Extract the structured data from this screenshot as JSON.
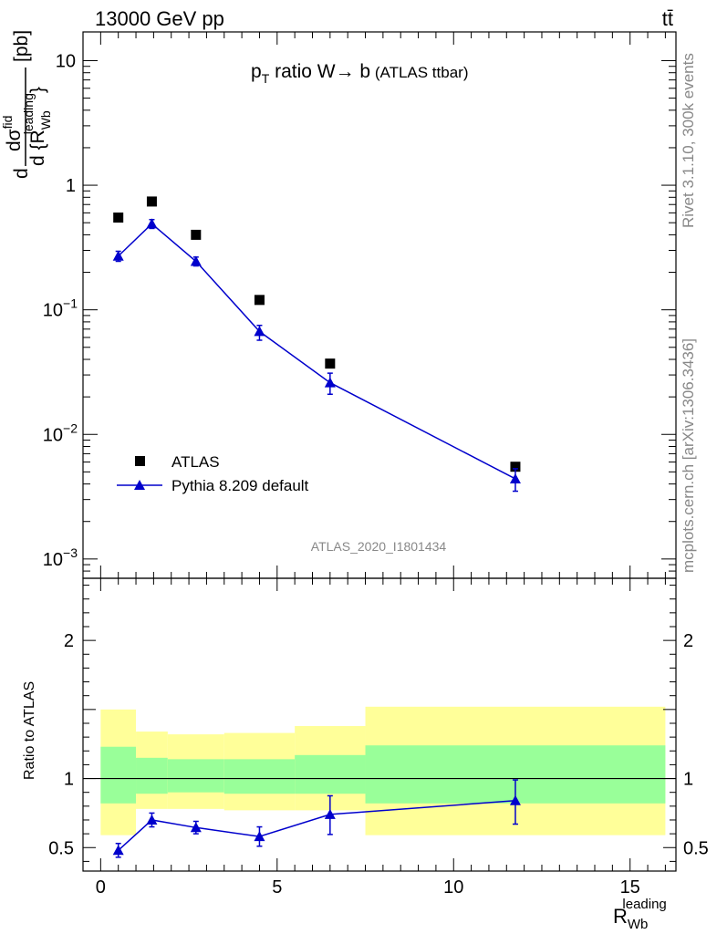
{
  "header": {
    "energy_label": "13000 GeV pp",
    "process_label": "tt̄"
  },
  "side_labels": {
    "rivet_info": "Rivet 3.1.10,  300k events",
    "site_info": "mcplots.cern.ch [arXiv:1306.3436]"
  },
  "chart_data": [
    {
      "type": "scatter",
      "title_p": "p",
      "title_sub": "T",
      "title_main": " ratio W",
      "title_arrow": "→",
      "title_b": " b",
      "title_small": " (ATLAS ttbar)",
      "ylabel_d": "d",
      "ylabel_sigma": "dσ",
      "ylabel_sigma_sup": "fid",
      "ylabel_den": "d {R",
      "ylabel_den_sub": "Wb",
      "ylabel_den_sup": "leading",
      "ylabel_den_close": "}",
      "ylabel_unit": "[pb]",
      "analysis_label": "ATLAS_2020_I1801434",
      "xlim": [
        -0.5,
        16.3
      ],
      "ylim": [
        0.0007,
        17
      ],
      "yscale": "log",
      "y_ticks": [
        {
          "value": 10,
          "base": "10",
          "exp": ""
        },
        {
          "value": 1,
          "base": "1",
          "exp": ""
        },
        {
          "value": 0.1,
          "base": "10",
          "exp": "−1"
        },
        {
          "value": 0.01,
          "base": "10",
          "exp": "−2"
        },
        {
          "value": 0.001,
          "base": "10",
          "exp": "−3"
        }
      ],
      "legend_position": "lower-left",
      "series": [
        {
          "name": "ATLAS",
          "marker": "square",
          "color": "#000000",
          "x": [
            0.5,
            1.45,
            2.7,
            4.5,
            6.5,
            11.75
          ],
          "y": [
            0.55,
            0.74,
            0.4,
            0.12,
            0.037,
            0.0055
          ]
        },
        {
          "name": "Pythia 8.209 default",
          "marker": "triangle",
          "color": "#0000cc",
          "x": [
            0.5,
            1.45,
            2.7,
            4.5,
            6.5,
            11.75
          ],
          "y": [
            0.27,
            0.49,
            0.245,
            0.067,
            0.026,
            0.0044
          ],
          "y_err_low": [
            0.025,
            0.04,
            0.02,
            0.01,
            0.005,
            0.0009
          ],
          "y_err_high": [
            0.025,
            0.04,
            0.02,
            0.008,
            0.005,
            0.0009
          ]
        }
      ]
    },
    {
      "type": "line",
      "ylabel": "Ratio to ATLAS",
      "xlabel": "R",
      "xlabel_sub": "Wb",
      "xlabel_sup": "leading",
      "xlim": [
        -0.5,
        16.3
      ],
      "ylim": [
        0.33,
        2.45
      ],
      "x_ticks": [
        0,
        5,
        10,
        15
      ],
      "y_ticks": [
        0.5,
        1,
        2
      ],
      "reference_line": 1,
      "bands": [
        {
          "x0": 0,
          "x1": 1,
          "inner": [
            0.82,
            1.23
          ],
          "outer": [
            0.59,
            1.5
          ]
        },
        {
          "x0": 1,
          "x1": 1.9,
          "inner": [
            0.89,
            1.15
          ],
          "outer": [
            0.78,
            1.34
          ]
        },
        {
          "x0": 1.9,
          "x1": 3.5,
          "inner": [
            0.9,
            1.14
          ],
          "outer": [
            0.78,
            1.32
          ]
        },
        {
          "x0": 3.5,
          "x1": 5.5,
          "inner": [
            0.89,
            1.14
          ],
          "outer": [
            0.77,
            1.33
          ]
        },
        {
          "x0": 5.5,
          "x1": 7.5,
          "inner": [
            0.89,
            1.17
          ],
          "outer": [
            0.77,
            1.38
          ]
        },
        {
          "x0": 7.5,
          "x1": 16,
          "inner": [
            0.82,
            1.24
          ],
          "outer": [
            0.59,
            1.52
          ]
        }
      ],
      "band_colors": {
        "inner": "#99ff99",
        "outer": "#ffff99"
      },
      "series": [
        {
          "name": "Pythia 8.209 default",
          "color": "#0000cc",
          "x": [
            0.5,
            1.45,
            2.7,
            4.5,
            6.5,
            11.75
          ],
          "y": [
            0.48,
            0.7,
            0.645,
            0.58,
            0.74,
            0.84
          ],
          "y_err_low": [
            0.05,
            0.05,
            0.045,
            0.07,
            0.145,
            0.17
          ],
          "y_err_high": [
            0.05,
            0.05,
            0.045,
            0.07,
            0.135,
            0.15
          ]
        }
      ]
    }
  ]
}
